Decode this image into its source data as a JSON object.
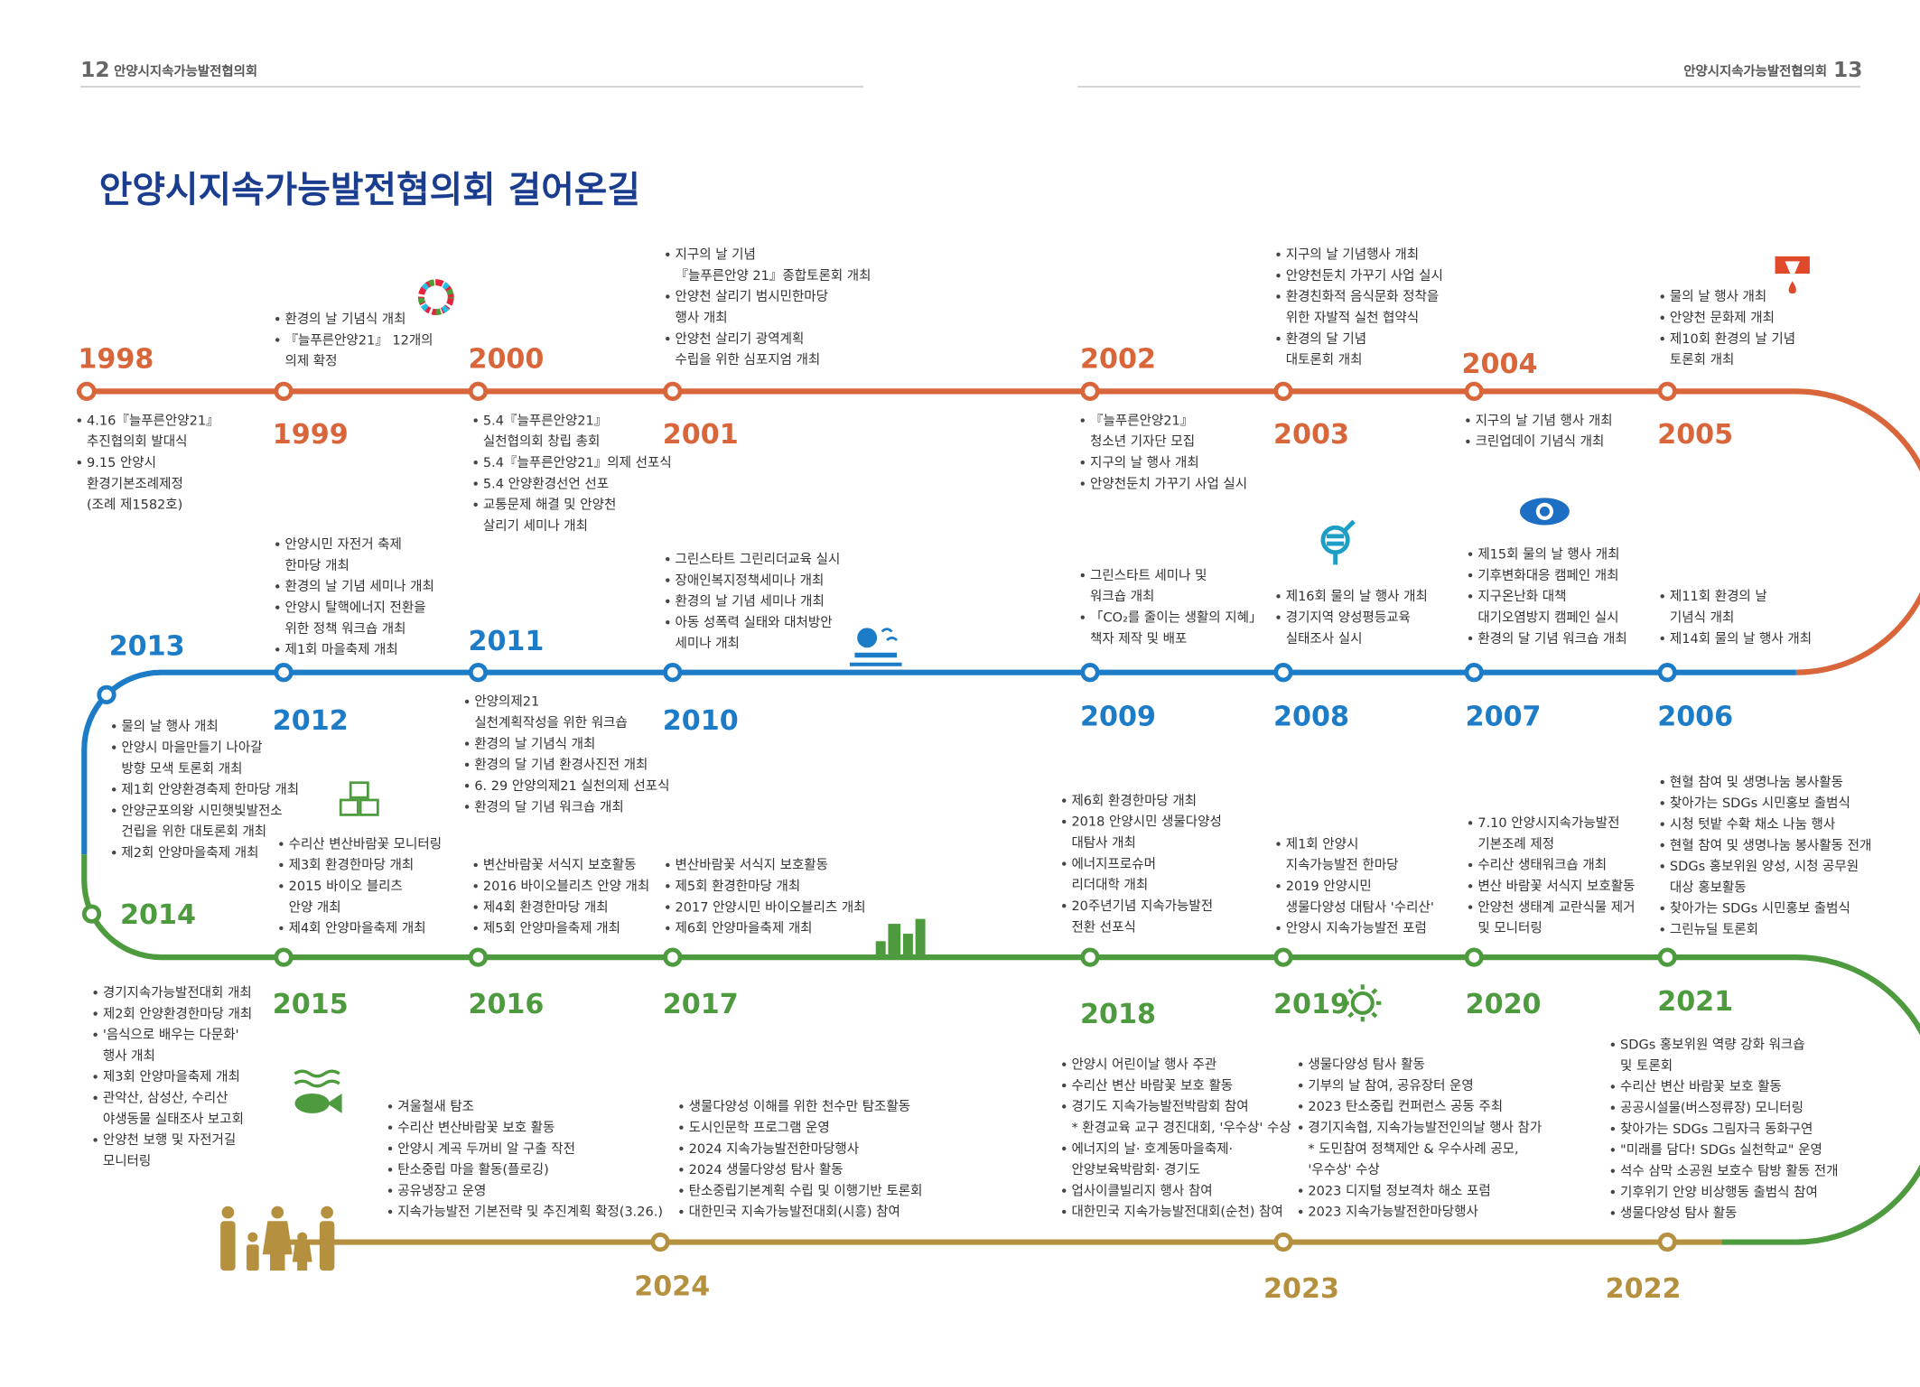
{
  "header": {
    "left_page": "12",
    "left_title": "안양시지속가능발전협의회",
    "right_title": "안양시지속가능발전협의회",
    "right_page": "13"
  },
  "title": "안양시지속가능발전협의회 걸어온길",
  "entries": [
    {
      "year": "1998",
      "columns": [
        [
          [
            "4.16『늘푸른안양21』",
            "추진협의회 발대식"
          ],
          [
            "9.15 안양시",
            "환경기본조례제정",
            "(조례 제1582호)"
          ]
        ]
      ]
    },
    {
      "year": "1999",
      "columns": [
        [
          [
            "환경의 날 기념식 개최"
          ],
          [
            "『늘푸른안양21』 12개의",
            "의제 확정"
          ]
        ]
      ]
    },
    {
      "year": "2000",
      "columns": [
        [
          [
            "5.4『늘푸른안양21』",
            "실천협의회  창립 총회"
          ],
          [
            "5.4『늘푸른안양21』의제 선포식"
          ],
          [
            "5.4 안양환경선언 선포"
          ],
          [
            "교통문제 해결 및 안양천",
            "살리기 세미나 개최"
          ]
        ]
      ]
    },
    {
      "year": "2001",
      "columns": [
        [
          [
            "지구의 날 기념",
            "『늘푸른안양 21』종합토론회 개최"
          ],
          [
            "안양천 살리기 범시민한마당",
            "행사 개최"
          ],
          [
            "안양천 살리기 광역계획",
            "수립을 위한 심포지엄 개최"
          ]
        ]
      ]
    },
    {
      "year": "2002",
      "columns": [
        [
          [
            "『늘푸른안양21』",
            "청소년 기자단 모집"
          ],
          [
            "지구의 날 행사 개최"
          ],
          [
            "안양천둔치 가꾸기 사업 실시"
          ]
        ]
      ]
    },
    {
      "year": "2003",
      "columns": [
        [
          [
            "지구의 날 기념행사 개최"
          ],
          [
            "안양천둔치 가꾸기 사업 실시"
          ],
          [
            "환경친화적 음식문화 정착을",
            "위한 자발적 실천 협약식"
          ],
          [
            "환경의 달 기념",
            "대토론회 개최"
          ]
        ]
      ]
    },
    {
      "year": "2004",
      "columns": [
        [
          [
            "지구의 날 기념 행사 개최"
          ],
          [
            "크린업데이 기념식 개최"
          ]
        ]
      ]
    },
    {
      "year": "2005",
      "columns": [
        [
          [
            "물의 날 행사 개최"
          ],
          [
            "안양천 문화제 개최"
          ],
          [
            "제10회 환경의 날 기념",
            "토론회 개최"
          ]
        ]
      ]
    },
    {
      "year": "2006",
      "columns": [
        [
          [
            "제11회 환경의 날",
            "기념식 개최"
          ],
          [
            "제14회 물의 날 행사 개최"
          ]
        ]
      ]
    },
    {
      "year": "2007",
      "columns": [
        [
          [
            "제15회 물의 날 행사 개최"
          ],
          [
            "기후변화대응 캠페인 개최"
          ],
          [
            "지구온난화 대책",
            "대기오염방지 캠페인 실시"
          ],
          [
            "환경의 달 기념 워크숍 개최"
          ]
        ]
      ]
    },
    {
      "year": "2008",
      "columns": [
        [
          [
            "제16회 물의 날 행사 개최"
          ],
          [
            "경기지역 양성평등교육",
            "실태조사 실시"
          ]
        ]
      ]
    },
    {
      "year": "2009",
      "columns": [
        [
          [
            "그린스타트 세미나 및",
            "워크숍 개최"
          ],
          [
            "「CO₂를 줄이는 생활의 지혜」",
            "책자 제작 및 배포"
          ]
        ]
      ]
    },
    {
      "year": "2010",
      "columns": [
        [
          [
            "그린스타트 그린리더교육 실시"
          ],
          [
            "장애인복지정책세미나 개최"
          ],
          [
            "환경의 날 기념 세미나 개최"
          ],
          [
            "아동 성폭력 실태와 대처방안",
            "세미나 개최"
          ]
        ]
      ]
    },
    {
      "year": "2011",
      "columns": [
        [
          [
            "안양의제21",
            "실천계획작성을 위한 워크숍"
          ],
          [
            "환경의 날 기념식 개최"
          ],
          [
            "환경의 달 기념 환경사진전 개최"
          ],
          [
            "6. 29 안양의제21 실천의제 선포식"
          ],
          [
            "환경의 달 기념 워크숍 개최"
          ]
        ]
      ]
    },
    {
      "year": "2012",
      "columns": [
        [
          [
            "안양시민 자전거 축제",
            "한마당 개최"
          ],
          [
            "환경의 날 기념 세미나 개최"
          ],
          [
            "안양시 탈핵에너지 전환을",
            "위한 정책 워크숍 개최"
          ],
          [
            "제1회 마을축제 개최"
          ]
        ]
      ]
    },
    {
      "year": "2013",
      "columns": [
        [
          [
            "물의 날 행사 개최"
          ],
          [
            "안양시 마을만들기 나아갈",
            "방향 모색 토론회 개최"
          ],
          [
            "제1회 안양환경축제 한마당 개최"
          ],
          [
            "안양군포의왕 시민햇빛발전소",
            "건립을 위한 대토론회 개최"
          ],
          [
            "제2회 안양마을축제 개최"
          ]
        ]
      ]
    },
    {
      "year": "2014",
      "columns": [
        [
          [
            "경기지속가능발전대회 개최"
          ],
          [
            "제2회 안양환경한마당 개최"
          ],
          [
            "'음식으로 배우는 다문화'",
            "행사 개최"
          ],
          [
            "제3회 안양마을축제 개최"
          ],
          [
            "관악산, 삼성산, 수리산",
            "야생동물 실태조사 보고회"
          ],
          [
            "안양천 보행 및 자전거길",
            "모니터링"
          ]
        ]
      ]
    },
    {
      "year": "2015",
      "columns": [
        [
          [
            "수리산 변산바람꽃 모니터링"
          ],
          [
            "제3회 환경한마당 개최"
          ],
          [
            "2015 바이오 블리츠",
            "안양 개최"
          ],
          [
            "제4회 안양마을축제 개최"
          ]
        ]
      ]
    },
    {
      "year": "2016",
      "columns": [
        [
          [
            "변산바람꽃 서식지 보호활동"
          ],
          [
            "2016 바이오블리츠 안양 개최"
          ],
          [
            "제4회 환경한마당 개최"
          ],
          [
            "제5회 안양마을축제 개최"
          ]
        ]
      ]
    },
    {
      "year": "2017",
      "columns": [
        [
          [
            "변산바람꽃 서식지 보호활동"
          ],
          [
            "제5회 환경한마당 개최"
          ],
          [
            "2017 안양시민 바이오블리츠 개최"
          ],
          [
            "제6회 안양마을축제 개최"
          ]
        ]
      ]
    },
    {
      "year": "2018",
      "columns": [
        [
          [
            "제6회 환경한마당 개최"
          ],
          [
            "2018 안양시민 생물다양성",
            "대탐사 개최"
          ],
          [
            "에너지프로슈머",
            "리더대학 개최"
          ],
          [
            "20주년기념 지속가능발전",
            "전환 선포식"
          ]
        ]
      ]
    },
    {
      "year": "2019",
      "columns": [
        [
          [
            "제1회 안양시",
            "지속가능발전  한마당"
          ],
          [
            "2019 안양시민",
            "생물다양성 대탐사 '수리산'"
          ],
          [
            "안양시 지속가능발전 포럼"
          ]
        ]
      ]
    },
    {
      "year": "2020",
      "columns": [
        [
          [
            "7.10 안양시지속가능발전",
            "기본조례 제정"
          ],
          [
            "수리산 생태워크숍 개최"
          ],
          [
            "변산 바람꽃 서식지 보호활동"
          ],
          [
            "안양천 생태계 교란식물 제거",
            "및 모니터링"
          ]
        ]
      ]
    },
    {
      "year": "2021",
      "columns": [
        [
          [
            "현혈 참여 및 생명나눔 봉사활동"
          ],
          [
            "찾아가는 SDGs 시민홍보 출범식"
          ],
          [
            "시청 텃밭 수확 채소 나눔 행사"
          ],
          [
            "현혈 참여 및 생명나눔 봉사활동 전개"
          ],
          [
            "SDGs 홍보위원 양성, 시청 공무원",
            "대상 홍보활동"
          ],
          [
            "찾아가는 SDGs  시민홍보 출범식"
          ],
          [
            "그린뉴딜 토론회"
          ]
        ]
      ]
    },
    {
      "year": "2022",
      "columns": [
        [
          [
            "SDGs 홍보위원 역량 강화 워크숍",
            "및 토론회"
          ],
          [
            "수리산 변산 바람꽃 보호 활동"
          ],
          [
            "공공시설물(버스정류장) 모니터링"
          ],
          [
            "찾아가는 SDGs 그림자극 동화구연"
          ],
          [
            "\"미래를 담다! SDGs 실천학교\" 운영"
          ],
          [
            "석수 삼막 소공원 보호수 탐방 활동 전개"
          ],
          [
            "기후위기 안양 비상행동 출범식 참여"
          ],
          [
            "생물다양성 탐사 활동"
          ]
        ]
      ]
    },
    {
      "year": "2023",
      "columns": [
        [
          [
            "안양시 어린이날 행사 주관"
          ],
          [
            "수리산 변산 바람꽃 보호 활동"
          ],
          [
            "경기도 지속가능발전박람회 참여",
            "* 환경교육 교구 경진대회, '우수상' 수상"
          ],
          [
            "에너지의 날· 호계동마을축제·",
            "안양보육박람회· 경기도"
          ],
          [
            "업사이클빌리지 행사 참여"
          ],
          [
            "대한민국 지속가능발전대회(순천) 참여"
          ]
        ],
        [
          [
            "생물다양성 탐사 활동"
          ],
          [
            "기부의 날 참여, 공유장터 운영"
          ],
          [
            "2023 탄소중립 컨퍼런스 공동 주최"
          ],
          [
            "경기지속협, 지속가능발전인의날 행사 참가",
            "* 도민참여 정책제안 & 우수사례 공모,",
            "'우수상' 수상"
          ],
          [
            "2023 디지털 정보격차 해소 포럼"
          ],
          [
            "2023 지속가능발전한마당행사"
          ]
        ]
      ]
    },
    {
      "year": "2024",
      "columns": [
        [
          [
            "겨울철새 탐조"
          ],
          [
            "수리산 변산바람꽃 보호 활동"
          ],
          [
            "안양시 계곡 두꺼비 알 구출 작전"
          ],
          [
            "탄소중립 마을 활동(플로깅)"
          ],
          [
            "공유냉장고 운영"
          ],
          [
            "지속가능발전 기본전략 및 추진계획 확정(3.26.)"
          ]
        ],
        [
          [
            "생물다양성 이해를 위한 천수만 탐조활동"
          ],
          [
            "도시인문학 프로그램 운영"
          ],
          [
            "2024 지속가능발전한마당행사"
          ],
          [
            "2024 생물다양성 탐사 활동"
          ],
          [
            "탄소중립기본계획 수립 및 이행기반 토론회"
          ],
          [
            "대한민국 지속가능발전대회(시흥) 참여"
          ]
        ]
      ]
    }
  ]
}
